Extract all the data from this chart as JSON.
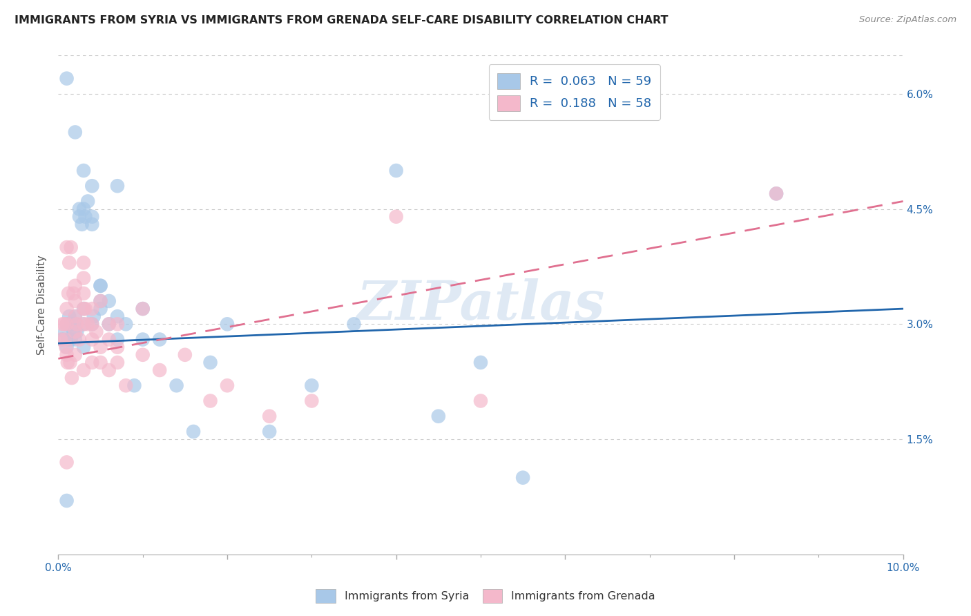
{
  "title": "IMMIGRANTS FROM SYRIA VS IMMIGRANTS FROM GRENADA SELF-CARE DISABILITY CORRELATION CHART",
  "source": "Source: ZipAtlas.com",
  "ylabel": "Self-Care Disability",
  "xlim": [
    0.0,
    0.1
  ],
  "ylim": [
    0.0,
    0.065
  ],
  "syria_R": 0.063,
  "syria_N": 59,
  "grenada_R": 0.188,
  "grenada_N": 58,
  "syria_color": "#a8c8e8",
  "grenada_color": "#f4b8cb",
  "syria_line_color": "#2166ac",
  "grenada_line_color": "#e07090",
  "background_color": "#ffffff",
  "watermark": "ZIPatlas",
  "grid_color": "#cccccc",
  "title_color": "#222222",
  "source_color": "#888888",
  "tick_color": "#2166ac",
  "legend_label_color": "#2166ac",
  "bottom_legend_color": "#333333",
  "syria_line_start_y": 0.0275,
  "syria_line_end_y": 0.032,
  "grenada_line_start_y": 0.0255,
  "grenada_line_end_y": 0.046,
  "syria_x": [
    0.0005,
    0.0008,
    0.001,
    0.001,
    0.0012,
    0.0013,
    0.0015,
    0.0015,
    0.0017,
    0.0018,
    0.002,
    0.002,
    0.002,
    0.0022,
    0.0025,
    0.0025,
    0.0028,
    0.003,
    0.003,
    0.003,
    0.003,
    0.0032,
    0.0035,
    0.004,
    0.004,
    0.004,
    0.0042,
    0.005,
    0.005,
    0.005,
    0.006,
    0.006,
    0.007,
    0.007,
    0.008,
    0.009,
    0.01,
    0.012,
    0.014,
    0.016,
    0.018,
    0.02,
    0.025,
    0.03,
    0.035,
    0.04,
    0.045,
    0.05,
    0.055,
    0.06,
    0.001,
    0.002,
    0.003,
    0.004,
    0.005,
    0.007,
    0.01,
    0.085,
    0.001
  ],
  "syria_y": [
    0.028,
    0.029,
    0.027,
    0.03,
    0.028,
    0.031,
    0.03,
    0.028,
    0.03,
    0.029,
    0.028,
    0.031,
    0.03,
    0.029,
    0.045,
    0.044,
    0.043,
    0.027,
    0.03,
    0.032,
    0.045,
    0.044,
    0.046,
    0.044,
    0.043,
    0.03,
    0.031,
    0.035,
    0.033,
    0.032,
    0.033,
    0.03,
    0.031,
    0.028,
    0.03,
    0.022,
    0.028,
    0.028,
    0.022,
    0.016,
    0.025,
    0.03,
    0.016,
    0.022,
    0.03,
    0.05,
    0.018,
    0.025,
    0.01,
    0.06,
    0.062,
    0.055,
    0.05,
    0.048,
    0.035,
    0.048,
    0.032,
    0.047,
    0.007
  ],
  "grenada_x": [
    0.0003,
    0.0005,
    0.0008,
    0.001,
    0.001,
    0.001,
    0.0012,
    0.0013,
    0.0015,
    0.0018,
    0.002,
    0.002,
    0.002,
    0.0022,
    0.0025,
    0.003,
    0.003,
    0.003,
    0.003,
    0.0032,
    0.0035,
    0.004,
    0.004,
    0.0045,
    0.005,
    0.005,
    0.006,
    0.006,
    0.007,
    0.007,
    0.008,
    0.01,
    0.012,
    0.015,
    0.018,
    0.02,
    0.025,
    0.03,
    0.001,
    0.002,
    0.003,
    0.004,
    0.005,
    0.007,
    0.01,
    0.0007,
    0.0009,
    0.0011,
    0.0014,
    0.0016,
    0.002,
    0.003,
    0.004,
    0.006,
    0.04,
    0.085,
    0.05,
    0.001
  ],
  "grenada_y": [
    0.028,
    0.03,
    0.028,
    0.026,
    0.03,
    0.032,
    0.034,
    0.038,
    0.04,
    0.034,
    0.031,
    0.033,
    0.029,
    0.03,
    0.028,
    0.038,
    0.036,
    0.034,
    0.03,
    0.032,
    0.03,
    0.03,
    0.028,
    0.029,
    0.027,
    0.025,
    0.03,
    0.028,
    0.027,
    0.025,
    0.022,
    0.026,
    0.024,
    0.026,
    0.02,
    0.022,
    0.018,
    0.02,
    0.04,
    0.035,
    0.032,
    0.032,
    0.033,
    0.03,
    0.032,
    0.03,
    0.027,
    0.025,
    0.025,
    0.023,
    0.026,
    0.024,
    0.025,
    0.024,
    0.044,
    0.047,
    0.02,
    0.012
  ]
}
